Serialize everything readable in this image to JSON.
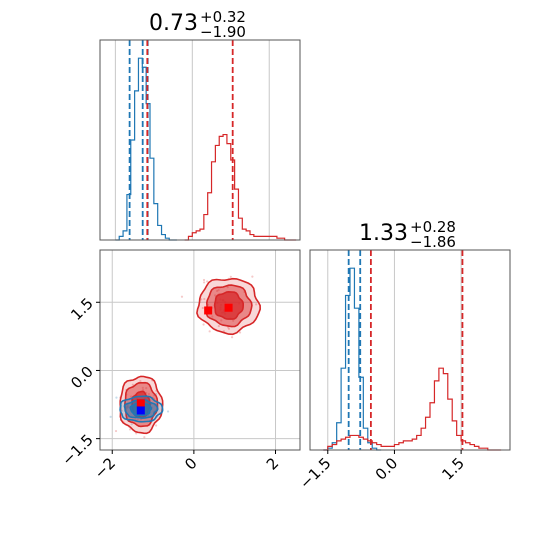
{
  "chart_data": [
    {
      "type": "histogram",
      "panel": "top-left",
      "title_value": "0.73",
      "title_upper": "+0.32",
      "title_lower": "−1.90",
      "xlim": [
        -2.4,
        2.8
      ],
      "ylim": [
        0,
        1.1
      ],
      "grid": true,
      "series": [
        {
          "color": "#1f77b4",
          "bins": [
            -2.0,
            -1.9,
            -1.8,
            -1.7,
            -1.6,
            -1.5,
            -1.4,
            -1.3,
            -1.2,
            -1.1,
            -1.0,
            -0.9,
            -0.8,
            -0.7,
            -0.6,
            -0.5
          ],
          "heights": [
            0.0,
            0.02,
            0.05,
            0.25,
            0.55,
            0.82,
            1.0,
            0.95,
            0.75,
            0.45,
            0.2,
            0.08,
            0.03,
            0.01,
            0.0,
            0.0
          ],
          "quantiles": [
            -1.63,
            -1.29,
            -1.16
          ]
        },
        {
          "color": "#d62728",
          "bins": [
            -0.2,
            -0.1,
            0.0,
            0.1,
            0.2,
            0.3,
            0.4,
            0.5,
            0.6,
            0.7,
            0.8,
            0.9,
            1.0,
            1.1,
            1.2,
            1.3,
            1.4,
            1.5,
            1.6,
            1.7,
            1.8,
            1.9,
            2.0,
            2.1,
            2.2,
            2.3,
            2.4,
            2.5,
            2.6
          ],
          "heights": [
            0.0,
            0.02,
            0.04,
            0.05,
            0.06,
            0.14,
            0.26,
            0.43,
            0.52,
            0.57,
            0.58,
            0.53,
            0.44,
            0.28,
            0.12,
            0.06,
            0.05,
            0.03,
            0.02,
            0.02,
            0.02,
            0.02,
            0.02,
            0.02,
            0.01,
            0.01,
            0.0,
            0.0,
            0.0
          ],
          "quantiles": [
            -1.17,
            1.05
          ]
        }
      ]
    },
    {
      "type": "histogram",
      "panel": "bottom-right",
      "title_value": "1.33",
      "title_upper": "+0.28",
      "title_lower": "−1.86",
      "xlim": [
        -1.9,
        2.6
      ],
      "ylim": [
        0,
        1.1
      ],
      "grid": true,
      "tick_labels": [
        "−1.5",
        "0.0",
        "1.5"
      ],
      "tick_values": [
        -1.5,
        0.0,
        1.5
      ],
      "series": [
        {
          "color": "#1f77b4",
          "bins": [
            -1.6,
            -1.5,
            -1.4,
            -1.3,
            -1.2,
            -1.1,
            -1.0,
            -0.9,
            -0.8,
            -0.7,
            -0.6,
            -0.5,
            -0.4
          ],
          "heights": [
            0.0,
            0.01,
            0.04,
            0.15,
            0.45,
            0.85,
            1.0,
            0.78,
            0.4,
            0.12,
            0.04,
            0.01,
            0.0
          ],
          "quantiles": [
            -1.03,
            -0.77
          ]
        },
        {
          "color": "#d62728",
          "bins": [
            -1.6,
            -1.5,
            -1.4,
            -1.3,
            -1.2,
            -1.1,
            -1.0,
            -0.9,
            -0.8,
            -0.7,
            -0.6,
            -0.5,
            -0.4,
            -0.3,
            -0.2,
            -0.1,
            0.0,
            0.1,
            0.2,
            0.3,
            0.4,
            0.5,
            0.6,
            0.7,
            0.8,
            0.9,
            1.0,
            1.1,
            1.2,
            1.3,
            1.4,
            1.5,
            1.6,
            1.7,
            1.8,
            1.9,
            2.0,
            2.1,
            2.2,
            2.3
          ],
          "heights": [
            0.0,
            0.02,
            0.03,
            0.05,
            0.06,
            0.07,
            0.08,
            0.08,
            0.07,
            0.06,
            0.05,
            0.04,
            0.03,
            0.02,
            0.02,
            0.02,
            0.03,
            0.04,
            0.05,
            0.05,
            0.06,
            0.08,
            0.12,
            0.18,
            0.26,
            0.38,
            0.45,
            0.42,
            0.28,
            0.16,
            0.08,
            0.05,
            0.04,
            0.03,
            0.02,
            0.01,
            0.01,
            0.0,
            0.0,
            0.0
          ],
          "quantiles": [
            -0.53,
            1.53
          ]
        }
      ]
    },
    {
      "type": "contour",
      "panel": "bottom-left",
      "xlim": [
        -2.3,
        2.6
      ],
      "ylim": [
        -1.75,
        2.65
      ],
      "grid": true,
      "x_tick_labels": [
        "−2",
        "0",
        "2"
      ],
      "x_tick_values": [
        -2,
        0,
        2
      ],
      "y_tick_labels": [
        "−1.5",
        "0.0",
        "1.5"
      ],
      "y_tick_values": [
        -1.5,
        0.0,
        1.5
      ],
      "clusters": [
        {
          "color": "#d62728",
          "center": [
            0.85,
            1.43
          ],
          "levels": [
            [
              0.75,
              0.6
            ],
            [
              0.55,
              0.45
            ],
            [
              0.35,
              0.3
            ]
          ],
          "markers": [
            [
              0.35,
              1.32
            ],
            [
              0.85,
              1.38
            ]
          ]
        },
        {
          "color": "#d62728",
          "center": [
            -1.3,
            -0.75
          ],
          "levels": [
            [
              0.52,
              0.62
            ],
            [
              0.4,
              0.48
            ],
            [
              0.22,
              0.28
            ]
          ],
          "markers": [
            [
              -1.3,
              -0.72
            ]
          ]
        },
        {
          "color": "#1f77b4",
          "center": [
            -1.3,
            -0.85
          ],
          "levels": [
            [
              0.52,
              0.28
            ],
            [
              0.4,
              0.2
            ],
            [
              0.25,
              0.14
            ]
          ],
          "markers": [
            [
              -1.3,
              -0.88
            ]
          ]
        }
      ]
    }
  ]
}
